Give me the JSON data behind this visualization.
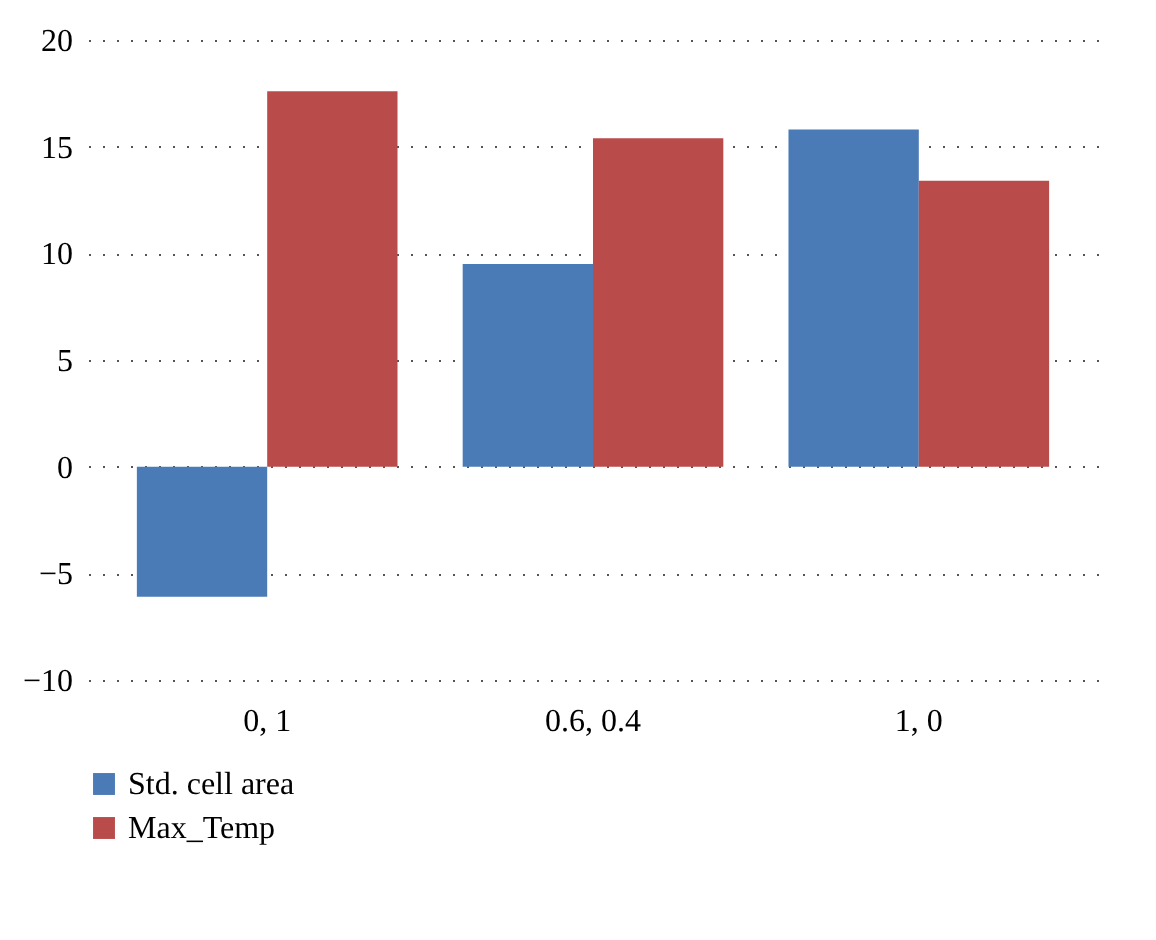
{
  "chart_data": {
    "type": "bar",
    "categories": [
      "0, 1",
      "0.6, 0.4",
      "1, 0"
    ],
    "series": [
      {
        "name": "Std. cell area",
        "color": "#4a7bb7",
        "values": [
          -6.1,
          9.5,
          15.8
        ]
      },
      {
        "name": "Max_Temp",
        "color": "#b94c4a",
        "values": [
          17.6,
          15.4,
          13.4
        ]
      }
    ],
    "ylim": [
      -10,
      20
    ],
    "yticks": [
      -10,
      -5,
      0,
      5,
      10,
      15,
      20
    ],
    "grid": "y",
    "legend": "bottom left"
  }
}
